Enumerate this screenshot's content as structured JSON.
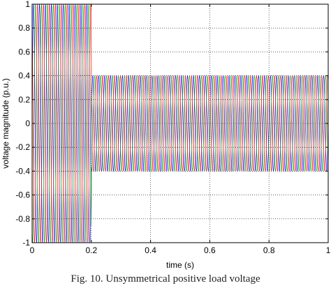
{
  "chart_data": {
    "type": "line",
    "title": "",
    "xlabel": "time (s)",
    "ylabel": "voltage magnitude (p.u.)",
    "xlim": [
      0,
      1
    ],
    "ylim": [
      -1,
      1
    ],
    "x_ticks": [
      "0",
      "0.2",
      "0.4",
      "0.6",
      "0.8",
      "1"
    ],
    "y_ticks": [
      "1",
      "0.8",
      "0.6",
      "0.4",
      "0.2",
      "0",
      "-0.2",
      "-0.4",
      "-0.6",
      "-0.8",
      "-1"
    ],
    "grid": true,
    "grid_style": "dotted",
    "frequency_hz": 50,
    "series": [
      {
        "color": "#0000ff",
        "phase_deg": 0
      },
      {
        "color": "#00a000",
        "phase_deg": -120
      },
      {
        "color": "#ff0000",
        "phase_deg": 120
      }
    ],
    "envelope": [
      {
        "t_start": 0,
        "t_end": 0.2,
        "amplitude": 1.0
      },
      {
        "t_start": 0.2,
        "t_end": 1.0,
        "amplitude": 0.4
      }
    ]
  },
  "caption": "Fig. 10. Unsymmetrical positive load voltage"
}
